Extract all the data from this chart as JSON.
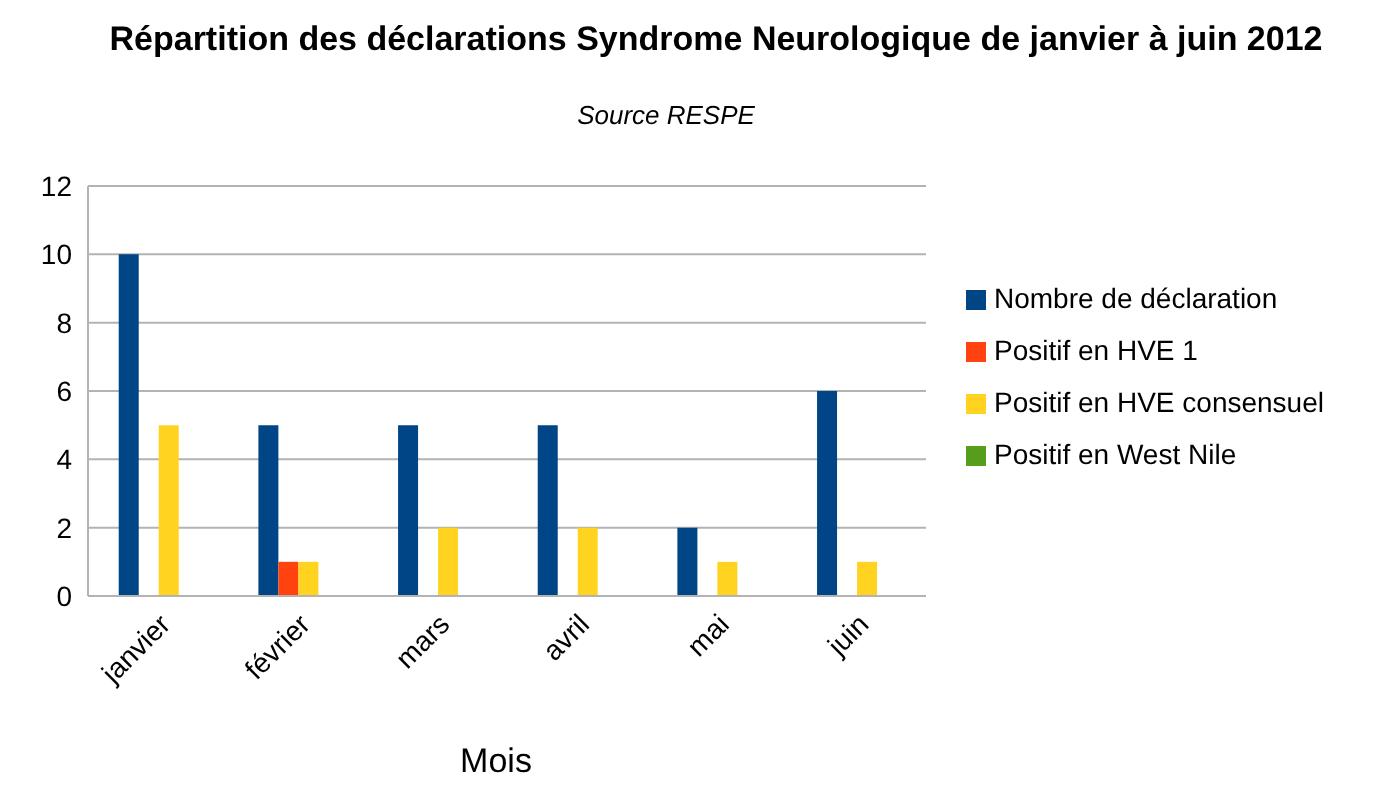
{
  "chart_data": {
    "type": "bar",
    "title": "Répartition des déclarations Syndrome Neurologique de janvier à juin 2012",
    "subtitle": "Source RESPE",
    "xlabel": "Mois",
    "categories": [
      "janvier",
      "février",
      "mars",
      "avril",
      "mai",
      "juin"
    ],
    "series": [
      {
        "name": "Nombre de déclaration",
        "color": "#004586",
        "values": [
          10,
          5,
          5,
          5,
          2,
          6
        ]
      },
      {
        "name": "Positif en HVE 1",
        "color": "#ff420e",
        "values": [
          0,
          1,
          0,
          0,
          0,
          0
        ]
      },
      {
        "name": "Positif en HVE consensuel",
        "color": "#ffd320",
        "values": [
          5,
          1,
          2,
          2,
          1,
          1
        ]
      },
      {
        "name": "Positif en West Nile",
        "color": "#579d1c",
        "values": [
          0,
          0,
          0,
          0,
          0,
          0
        ]
      }
    ],
    "ylim": [
      0,
      12
    ],
    "yticks": [
      0,
      2,
      4,
      6,
      8,
      10,
      12
    ],
    "grid": "y",
    "legend": "right"
  }
}
